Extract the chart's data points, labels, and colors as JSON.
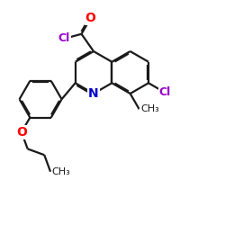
{
  "bg_color": "#ffffff",
  "bond_color": "#1a1a1a",
  "bond_lw": 1.6,
  "dbo": 0.055,
  "atom_colors": {
    "O": "#ff0000",
    "N": "#0000cc",
    "Cl": "#9900cc",
    "C": "#1a1a1a"
  },
  "bl": 0.95,
  "figsize": [
    2.5,
    2.5
  ],
  "dpi": 100,
  "xlim": [
    -1.0,
    9.0
  ],
  "ylim": [
    -1.0,
    9.0
  ]
}
